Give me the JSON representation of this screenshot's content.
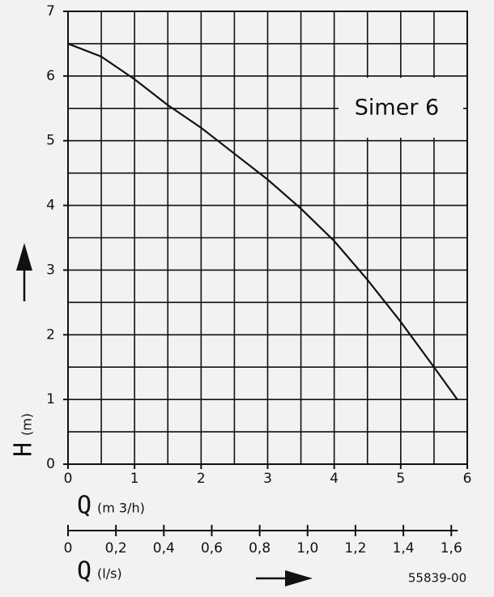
{
  "chart_data": {
    "type": "line",
    "title": "Simer 6",
    "xlabel": "Q",
    "xlabel_unit": "(m 3/h)",
    "ylabel": "H",
    "ylabel_unit": "(m)",
    "x2label": "Q",
    "x2label_unit": "(l/s)",
    "code": "55839-00",
    "x": [
      0,
      0.5,
      1,
      1.5,
      2,
      2.5,
      3,
      3.5,
      4,
      4.5,
      5,
      5.5,
      5.85
    ],
    "series": [
      {
        "name": "Simer 6",
        "color": "#111111",
        "values": [
          6.5,
          6.3,
          5.95,
          5.55,
          5.2,
          4.8,
          4.4,
          3.95,
          3.45,
          2.85,
          2.2,
          1.5,
          1.0
        ]
      }
    ],
    "xlim": [
      0,
      6
    ],
    "xticks": [
      0,
      1,
      2,
      3,
      4,
      5,
      6
    ],
    "ylim": [
      0,
      7
    ],
    "yticks": [
      0,
      1,
      2,
      3,
      4,
      5,
      6,
      7
    ],
    "grid": true,
    "grid_step": 0.5,
    "x2lim": [
      0,
      1.6667
    ],
    "x2ticks": [
      0,
      {
        "value": 0.2,
        "label": "0,2"
      },
      {
        "value": 0.4,
        "label": "0,4"
      },
      {
        "value": 0.6,
        "label": "0,6"
      },
      {
        "value": 0.8,
        "label": "0,8"
      },
      {
        "value": 1,
        "label": "1,0"
      },
      {
        "value": 1.2,
        "label": "1,2"
      },
      {
        "value": 1.4,
        "label": "1,4"
      },
      {
        "value": 1.6,
        "label": "1,6"
      }
    ]
  }
}
